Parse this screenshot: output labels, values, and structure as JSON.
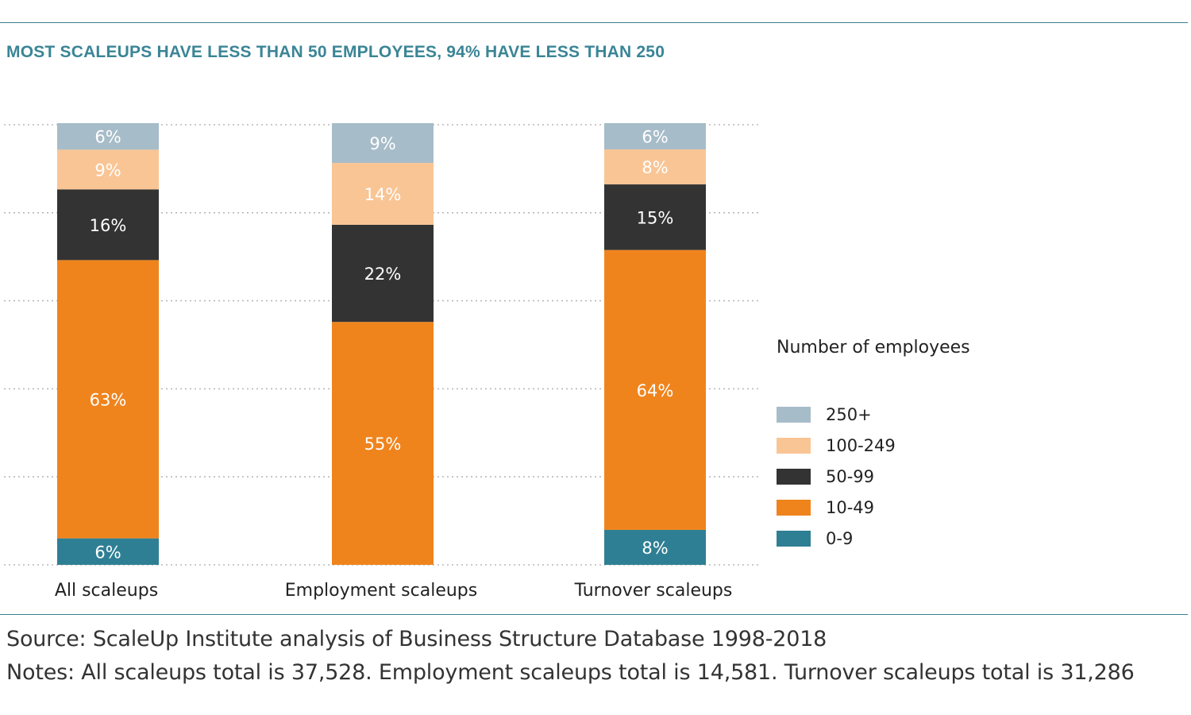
{
  "header": {
    "title": "MOST SCALEUPS HAVE LESS THAN 50 EMPLOYEES, 94% HAVE LESS THAN 250"
  },
  "chart_data": {
    "type": "bar",
    "stacked": true,
    "percent_stacked": true,
    "categories": [
      "All scaleups",
      "Employment scaleups",
      "Turnover scaleups"
    ],
    "series": [
      {
        "name": "0-9",
        "color": "#2f7f94",
        "values": [
          6,
          0,
          8
        ],
        "labels": [
          "6%",
          "",
          "8%"
        ]
      },
      {
        "name": "10-49",
        "color": "#ef841d",
        "values": [
          63,
          55,
          64
        ],
        "labels": [
          "63%",
          "55%",
          "64%"
        ]
      },
      {
        "name": "50-99",
        "color": "#333333",
        "values": [
          16,
          22,
          15
        ],
        "labels": [
          "16%",
          "22%",
          "15%"
        ]
      },
      {
        "name": "100-249",
        "color": "#f9c595",
        "values": [
          9,
          14,
          8
        ],
        "labels": [
          "9%",
          "14%",
          "8%"
        ]
      },
      {
        "name": "250+",
        "color": "#a7bcc9",
        "values": [
          6,
          9,
          6
        ],
        "labels": [
          "6%",
          "9%",
          "6%"
        ]
      }
    ],
    "legend_title": "Number of employees",
    "legend_position": "right",
    "grid": "dotted horizontal"
  },
  "footer": {
    "source": "Source: ScaleUp Institute analysis of Business Structure Database 1998-2018",
    "notes": "Notes: All scaleups total is 37,528. Employment scaleups total is 14,581. Turnover scaleups total is 31,286"
  }
}
